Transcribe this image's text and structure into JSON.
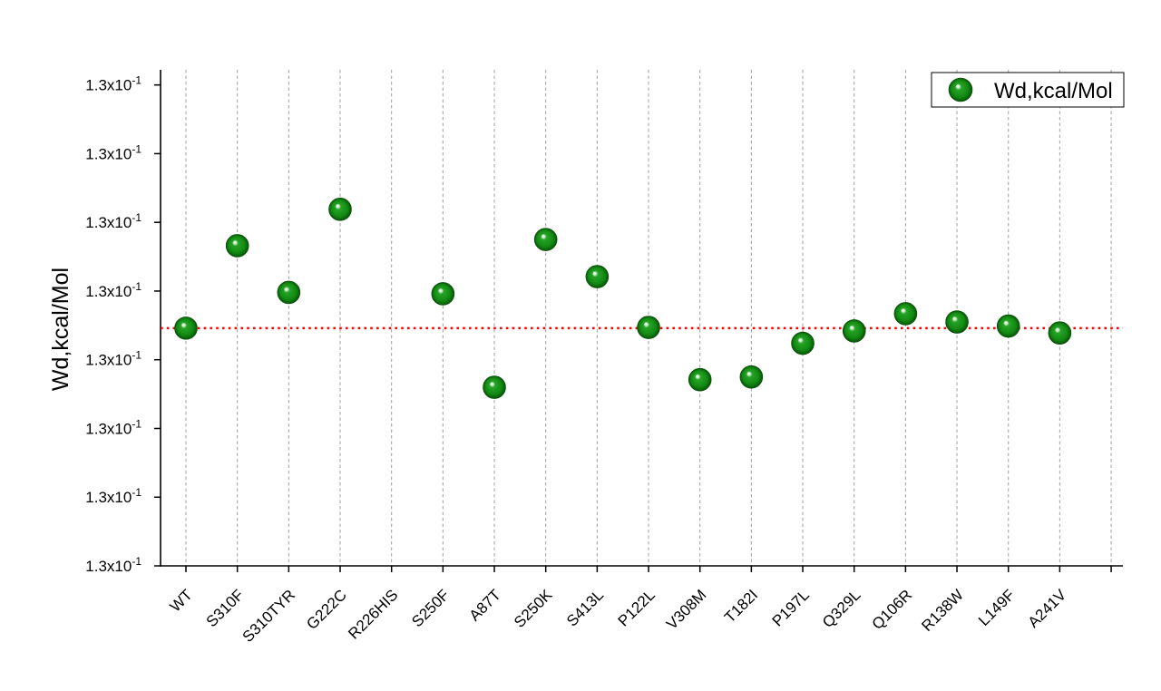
{
  "chart_data": {
    "type": "scatter",
    "ylabel": "Wd,kcal/Mol",
    "categories": [
      "WT",
      "S310F",
      "S310TYR",
      "G222C",
      "R226HIS",
      "S250F",
      "A87T",
      "S250K",
      "S413L",
      "P122L",
      "V308M",
      "T182I",
      "P197L",
      "Q329L",
      "Q106R",
      "R138W",
      "L149F",
      "A241V"
    ],
    "series": [
      {
        "name": "Wd,kcal/Mol",
        "color": "#128a12",
        "values": [
          0.130046,
          0.130166,
          0.130098,
          0.130219,
          null,
          0.130096,
          0.12996,
          0.130175,
          0.130121,
          0.130047,
          0.129971,
          0.129975,
          0.130024,
          0.130042,
          0.130067,
          0.130055,
          0.130049,
          0.130039
        ]
      }
    ],
    "ylim": [
      0.1297,
      0.130422
    ],
    "y_ticks": [
      0.1297,
      0.1298,
      0.1299,
      0.13,
      0.1301,
      0.1302,
      0.1303,
      0.1304
    ],
    "y_tick_labels": [
      {
        "mantissa": "1.3x10",
        "exponent": "-1"
      },
      {
        "mantissa": "1.3x10",
        "exponent": "-1"
      },
      {
        "mantissa": "1.3x10",
        "exponent": "-1"
      },
      {
        "mantissa": "1.3x10",
        "exponent": "-1"
      },
      {
        "mantissa": "1.3x10",
        "exponent": "-1"
      },
      {
        "mantissa": "1.3x10",
        "exponent": "-1"
      },
      {
        "mantissa": "1.3x10",
        "exponent": "-1"
      },
      {
        "mantissa": "1.3x10",
        "exponent": "-1"
      }
    ],
    "reference_line": {
      "y": 0.130046,
      "color": "#ff0000"
    },
    "grid": {
      "x": true,
      "y": false
    },
    "legend": "top-right"
  }
}
